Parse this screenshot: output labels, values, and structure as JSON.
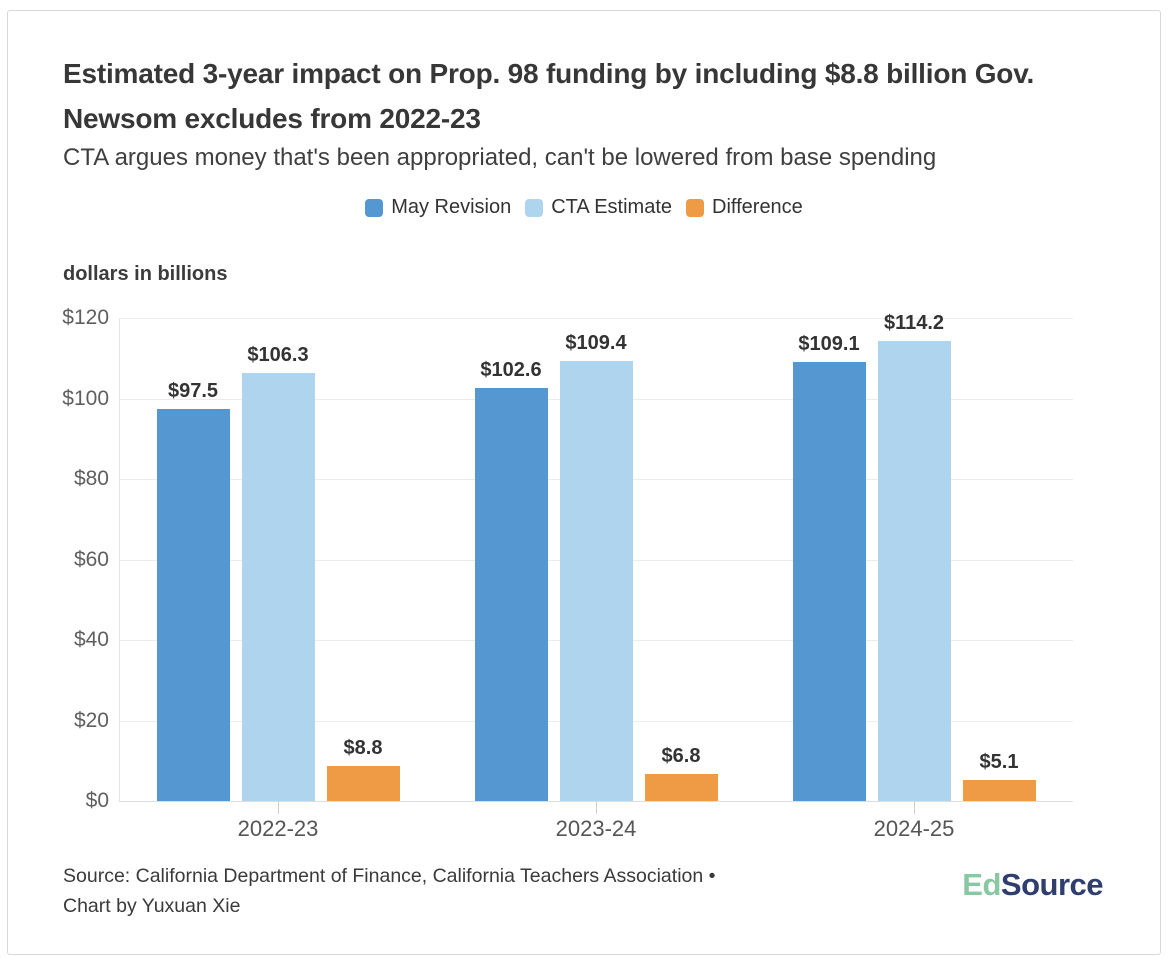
{
  "chart_data": {
    "type": "bar",
    "title": "Estimated 3-year impact on Prop. 98 funding by including $8.8 billion Gov. Newsom excludes from 2022-23",
    "subtitle": "CTA argues money that's been appropriated, can't be lowered from base spending",
    "ylabel": "dollars in billions",
    "xlabel": "",
    "categories": [
      "2022-23",
      "2023-24",
      "2024-25"
    ],
    "series": [
      {
        "name": "May Revision",
        "color": "#5598d1",
        "values": [
          97.5,
          102.6,
          109.1
        ],
        "labels": [
          "$97.5",
          "$102.6",
          "$109.1"
        ]
      },
      {
        "name": "CTA Estimate",
        "color": "#afd4ed",
        "values": [
          106.3,
          109.4,
          114.2
        ],
        "labels": [
          "$106.3",
          "$109.4",
          "$114.2"
        ]
      },
      {
        "name": "Difference",
        "color": "#ef9a45",
        "values": [
          8.8,
          6.8,
          5.1
        ],
        "labels": [
          "$8.8",
          "$6.8",
          "$5.1"
        ]
      }
    ],
    "ylim": [
      0,
      120
    ],
    "ytick_values": [
      0,
      20,
      40,
      60,
      80,
      100,
      120
    ],
    "yticks": [
      "$0",
      "$20",
      "$40",
      "$60",
      "$80",
      "$100",
      "$120"
    ],
    "grid": true,
    "legend_position": "top-center"
  },
  "footer": {
    "source_line1": "Source: California Department of Finance, California Teachers Association •",
    "source_line2": "Chart by Yuxuan Xie",
    "logo": {
      "ed": "Ed",
      "source": "Source",
      "ed_color": "#8ac7a3",
      "source_color": "#2f3e6c"
    }
  }
}
